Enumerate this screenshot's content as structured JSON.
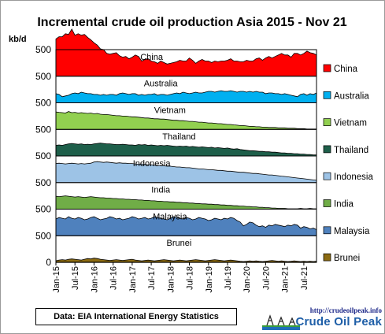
{
  "chart_data": {
    "type": "area",
    "title": "Incremental crude oil production Asia 2015 - Nov 21",
    "ylabel": "kb/d",
    "y_tick_labels": [
      "0",
      "500",
      "500",
      "500",
      "500",
      "500",
      "500",
      "500",
      "500"
    ],
    "x_tick_labels": [
      "Jan-15",
      "Jul-15",
      "Jan-16",
      "Jul-16",
      "Jan-17",
      "Jul-17",
      "Jan-18",
      "Jul-18",
      "Jan-19",
      "Jul-19",
      "Jan-20",
      "Jul-20",
      "Jan-21",
      "Jul-21"
    ],
    "x_range": [
      "2015-01",
      "2021-11"
    ],
    "stack_offset_kbd": 350,
    "series": [
      {
        "name": "China",
        "color": "#ff0000",
        "values": [
          490,
          520,
          520,
          560,
          550,
          620,
          540,
          560,
          540,
          550,
          510,
          480,
          440,
          410,
          360,
          350,
          300,
          290,
          300,
          310,
          270,
          250,
          260,
          230,
          250,
          280,
          260,
          200,
          220,
          230,
          200,
          190,
          170,
          200,
          180,
          160,
          170,
          180,
          190,
          210,
          200,
          200,
          240,
          210,
          170,
          200,
          220,
          200,
          200,
          180,
          200,
          190,
          200,
          200,
          210,
          230,
          200,
          200,
          190,
          190,
          210,
          200,
          200,
          230,
          240,
          210,
          240,
          260,
          240,
          260,
          280,
          300,
          280,
          280,
          250,
          300,
          300,
          280,
          300,
          330,
          310,
          300,
          280
        ]
      },
      {
        "name": "Australia",
        "color": "#00b0f0",
        "values": [
          120,
          110,
          80,
          90,
          100,
          120,
          130,
          120,
          140,
          130,
          120,
          120,
          110,
          110,
          100,
          110,
          100,
          110,
          110,
          100,
          120,
          130,
          120,
          110,
          120,
          120,
          100,
          110,
          100,
          110,
          110,
          120,
          100,
          110,
          110,
          100,
          110,
          120,
          130,
          120,
          140,
          130,
          120,
          130,
          140,
          130,
          130,
          140,
          150,
          150,
          140,
          150,
          160,
          150,
          150,
          160,
          150,
          140,
          150,
          150,
          140,
          150,
          140,
          150,
          140,
          140,
          120,
          130,
          130,
          120,
          120,
          110,
          120,
          110,
          100,
          90,
          80,
          110,
          120,
          100,
          120,
          110,
          130
        ]
      },
      {
        "name": "Vietnam",
        "color": "#92d050",
        "values": [
          230,
          225,
          220,
          215,
          235,
          220,
          225,
          215,
          220,
          215,
          210,
          215,
          205,
          210,
          200,
          195,
          195,
          190,
          185,
          180,
          180,
          175,
          175,
          170,
          165,
          165,
          160,
          155,
          150,
          150,
          145,
          140,
          140,
          135,
          135,
          130,
          125,
          120,
          120,
          115,
          115,
          110,
          105,
          105,
          100,
          95,
          95,
          90,
          85,
          85,
          80,
          75,
          75,
          70,
          65,
          65,
          60,
          55,
          50,
          50,
          45,
          40,
          40,
          35,
          35,
          30,
          30,
          25,
          25,
          25,
          20,
          20,
          20,
          15,
          15,
          15,
          10,
          10,
          10,
          5,
          5,
          5,
          5
        ]
      },
      {
        "name": "Thailand",
        "color": "#1e5f4a",
        "values": [
          140,
          145,
          140,
          150,
          160,
          165,
          160,
          155,
          160,
          150,
          155,
          150,
          160,
          165,
          170,
          165,
          160,
          160,
          155,
          150,
          150,
          155,
          150,
          145,
          145,
          140,
          150,
          145,
          150,
          140,
          145,
          140,
          135,
          140,
          135,
          140,
          135,
          130,
          125,
          130,
          125,
          130,
          120,
          125,
          120,
          115,
          120,
          115,
          110,
          115,
          105,
          110,
          105,
          100,
          105,
          95,
          90,
          95,
          85,
          80,
          75,
          70,
          70,
          65,
          60,
          60,
          55,
          55,
          50,
          50,
          45,
          40,
          40,
          35,
          35,
          30,
          30,
          25,
          25,
          20,
          20,
          15,
          15
        ]
      },
      {
        "name": "Indonesia",
        "color": "#9dc3e6",
        "values": [
          250,
          255,
          250,
          245,
          250,
          255,
          250,
          245,
          250,
          245,
          250,
          255,
          270,
          275,
          270,
          265,
          270,
          265,
          260,
          255,
          260,
          255,
          255,
          250,
          250,
          245,
          240,
          245,
          240,
          235,
          235,
          230,
          225,
          225,
          220,
          215,
          215,
          210,
          205,
          205,
          200,
          195,
          195,
          190,
          185,
          180,
          180,
          175,
          170,
          170,
          165,
          160,
          160,
          155,
          150,
          150,
          145,
          140,
          135,
          135,
          130,
          125,
          120,
          120,
          115,
          110,
          105,
          100,
          100,
          95,
          90,
          85,
          80,
          75,
          70,
          65,
          60,
          55,
          50,
          45,
          40,
          35,
          30
        ]
      },
      {
        "name": "India",
        "color": "#70ad47",
        "values": [
          170,
          165,
          170,
          175,
          170,
          165,
          160,
          165,
          160,
          155,
          160,
          165,
          160,
          155,
          150,
          150,
          145,
          145,
          140,
          140,
          135,
          135,
          130,
          130,
          125,
          125,
          120,
          120,
          115,
          115,
          110,
          110,
          105,
          105,
          100,
          100,
          95,
          95,
          90,
          90,
          85,
          85,
          80,
          80,
          75,
          75,
          70,
          70,
          65,
          65,
          60,
          60,
          55,
          55,
          50,
          50,
          45,
          45,
          40,
          40,
          35,
          35,
          30,
          30,
          25,
          25,
          20,
          20,
          15,
          15,
          10,
          10,
          10,
          5,
          5,
          5,
          5,
          10,
          5,
          5,
          10,
          5,
          5
        ]
      },
      {
        "name": "Malaysia",
        "color": "#4f81bd",
        "values": [
          220,
          240,
          230,
          220,
          250,
          230,
          220,
          240,
          230,
          210,
          220,
          240,
          250,
          230,
          210,
          220,
          230,
          250,
          240,
          220,
          230,
          210,
          220,
          230,
          250,
          240,
          220,
          230,
          240,
          220,
          230,
          250,
          240,
          230,
          220,
          210,
          230,
          250,
          240,
          230,
          220,
          240,
          230,
          210,
          220,
          240,
          230,
          220,
          200,
          210,
          230,
          220,
          210,
          230,
          220,
          240,
          230,
          200,
          180,
          130,
          150,
          180,
          170,
          140,
          120,
          130,
          110,
          140,
          130,
          150,
          140,
          130,
          120,
          140,
          130,
          150,
          140,
          100,
          120,
          110,
          90,
          100,
          80
        ]
      },
      {
        "name": "Brunei",
        "color": "#8c6b12",
        "values": [
          20,
          30,
          35,
          30,
          40,
          45,
          40,
          35,
          30,
          40,
          50,
          45,
          55,
          50,
          40,
          35,
          30,
          25,
          30,
          35,
          30,
          25,
          30,
          35,
          40,
          30,
          25,
          20,
          25,
          30,
          25,
          20,
          25,
          30,
          35,
          30,
          25,
          20,
          25,
          30,
          25,
          20,
          25,
          30,
          35,
          30,
          25,
          20,
          25,
          30,
          35,
          30,
          25,
          20,
          25,
          30,
          25,
          20,
          15,
          10,
          15,
          20,
          15,
          20,
          15,
          10,
          15,
          20,
          25,
          20,
          15,
          20,
          15,
          10,
          15,
          20,
          15,
          10,
          15,
          10,
          15,
          10,
          15
        ]
      }
    ]
  },
  "footer": {
    "source": "Data: EIA International Energy Statistics",
    "logo_url": "http://crudeoilpeak.info",
    "logo_name": "Crude Oil Peak"
  }
}
